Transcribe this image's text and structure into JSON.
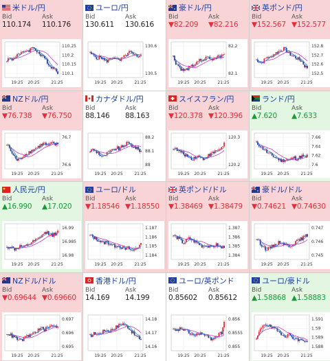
{
  "colors": {
    "down": "#e0303a",
    "up": "#1a9a3a",
    "bg_down": "#f9d4d6",
    "bg_up": "#e2f6e2",
    "title": "#1a3fa0",
    "ma": "#c020c0",
    "ma2": "#2f7fe0"
  },
  "labels": {
    "bid": "Bid",
    "ask": "Ask"
  },
  "x_ticks": [
    "19:25",
    "20:25",
    "21:25"
  ],
  "cards": [
    {
      "name": "米ドル/円",
      "flag": "us",
      "trend": "down",
      "bid": "110.174",
      "ask": "110.176",
      "arrow": "",
      "yticks": [
        "110.25",
        "110.2",
        "110.15",
        "110.1"
      ],
      "seed": 1,
      "shape": [
        0.5,
        0.55,
        0.5,
        0.6,
        0.7,
        0.65,
        0.75,
        0.8,
        0.78,
        0.85,
        0.9,
        0.8,
        0.7,
        0.6,
        0.55,
        0.45,
        0.3,
        0.25,
        0.2,
        0.1
      ]
    },
    {
      "name": "ユーロ/円",
      "flag": "eu",
      "trend": "flat",
      "bid": "130.611",
      "ask": "130.616",
      "arrow": "",
      "yticks": [
        "130.6",
        "130.5"
      ],
      "seed": 2,
      "shape": [
        0.7,
        0.65,
        0.6,
        0.55,
        0.6,
        0.5,
        0.45,
        0.5,
        0.55,
        0.6,
        0.5,
        0.45,
        0.55,
        0.6,
        0.7,
        0.75,
        0.65,
        0.6,
        0.55,
        0.7
      ]
    },
    {
      "name": "豪ドル/円",
      "flag": "au",
      "trend": "down",
      "bid": "82.209",
      "ask": "82.216",
      "arrow": "▼",
      "yticks": [
        "82.2",
        "82.1"
      ],
      "seed": 3,
      "shape": [
        0.6,
        0.4,
        0.3,
        0.2,
        0.15,
        0.2,
        0.25,
        0.3,
        0.35,
        0.4,
        0.5,
        0.45,
        0.55,
        0.6,
        0.5,
        0.55,
        0.6,
        0.65,
        0.6,
        0.7
      ]
    },
    {
      "name": "英ポンド/円",
      "flag": "uk",
      "trend": "down",
      "bid": "152.567",
      "ask": "152.577",
      "arrow": "▼",
      "yticks": [
        "152.8",
        "152.7",
        "152.6",
        "152.5"
      ],
      "seed": 4,
      "shape": [
        0.5,
        0.45,
        0.4,
        0.5,
        0.6,
        0.55,
        0.65,
        0.7,
        0.75,
        0.8,
        0.85,
        0.8,
        0.7,
        0.65,
        0.6,
        0.55,
        0.5,
        0.45,
        0.3,
        0.25
      ]
    },
    {
      "name": "NZドル/円",
      "flag": "nz",
      "trend": "down",
      "bid": "76.738",
      "ask": "76.750",
      "arrow": "▼",
      "yticks": [
        "76.7",
        "76.6"
      ],
      "seed": 5,
      "shape": [
        0.7,
        0.6,
        0.4,
        0.3,
        0.2,
        0.25,
        0.35,
        0.4,
        0.45,
        0.5,
        0.55,
        0.6,
        0.65,
        0.7,
        0.75,
        0.65,
        0.7,
        0.75,
        0.7,
        0.72
      ]
    },
    {
      "name": "カナダドル/円",
      "flag": "ca",
      "trend": "flat",
      "bid": "88.146",
      "ask": "88.163",
      "arrow": "",
      "yticks": [
        "88.2",
        "88.1",
        "88"
      ],
      "seed": 6,
      "shape": [
        0.5,
        0.55,
        0.5,
        0.45,
        0.35,
        0.3,
        0.4,
        0.45,
        0.5,
        0.55,
        0.6,
        0.55,
        0.65,
        0.7,
        0.75,
        0.7,
        0.65,
        0.6,
        0.55,
        0.5
      ]
    },
    {
      "name": "スイスフラン/円",
      "flag": "ch",
      "trend": "down",
      "bid": "120.378",
      "ask": "120.396",
      "arrow": "▼",
      "yticks": [
        "120.3",
        "120.2"
      ],
      "seed": 7,
      "shape": [
        0.6,
        0.55,
        0.5,
        0.45,
        0.4,
        0.35,
        0.3,
        0.25,
        0.3,
        0.35,
        0.3,
        0.25,
        0.3,
        0.35,
        0.4,
        0.45,
        0.5,
        0.55,
        0.6,
        0.75
      ]
    },
    {
      "name": "ランド/円",
      "flag": "za",
      "trend": "up",
      "bid": "7.620",
      "ask": "7.633",
      "arrow": "▲",
      "yticks": [
        "7.66",
        "7.64",
        "7.62",
        "7.6"
      ],
      "seed": 8,
      "shape": [
        0.75,
        0.7,
        0.6,
        0.55,
        0.45,
        0.4,
        0.35,
        0.3,
        0.25,
        0.2,
        0.2,
        0.25,
        0.2,
        0.25,
        0.3,
        0.25,
        0.3,
        0.35,
        0.3,
        0.35
      ]
    },
    {
      "name": "人民元/円",
      "flag": "cn",
      "trend": "up",
      "bid": "16.990",
      "ask": "17.020",
      "arrow": "▲",
      "yticks": [
        "16.99",
        "16.985",
        "16.98"
      ],
      "seed": 9,
      "shape": [
        0.3,
        0.35,
        0.3,
        0.25,
        0.3,
        0.35,
        0.3,
        0.35,
        0.4,
        0.45,
        0.5,
        0.55,
        0.6,
        0.7,
        0.75,
        0.8,
        0.75,
        0.7,
        0.75,
        0.8
      ]
    },
    {
      "name": "ユーロ/ドル",
      "flag": "eu",
      "trend": "down",
      "bid": "1.18546",
      "ask": "1.18550",
      "arrow": "▼",
      "yticks": [
        "1.187",
        "1.186",
        "1.185",
        "1.184"
      ],
      "seed": 10,
      "shape": [
        0.7,
        0.65,
        0.6,
        0.55,
        0.5,
        0.45,
        0.5,
        0.45,
        0.4,
        0.35,
        0.4,
        0.35,
        0.3,
        0.25,
        0.3,
        0.25,
        0.2,
        0.3,
        0.35,
        0.4
      ]
    },
    {
      "name": "英ポンド/ドル",
      "flag": "uk",
      "trend": "down",
      "bid": "1.38469",
      "ask": "1.38479",
      "arrow": "▼",
      "yticks": [
        "1.387",
        "1.386",
        "1.385",
        "1.384"
      ],
      "seed": 11,
      "shape": [
        0.7,
        0.65,
        0.6,
        0.5,
        0.45,
        0.55,
        0.6,
        0.55,
        0.5,
        0.45,
        0.4,
        0.35,
        0.4,
        0.35,
        0.3,
        0.35,
        0.4,
        0.35,
        0.3,
        0.35
      ]
    },
    {
      "name": "豪ドル/ドル",
      "flag": "au",
      "trend": "down",
      "bid": "0.74621",
      "ask": "0.74630",
      "arrow": "▼",
      "yticks": [
        "0.747",
        "0.746",
        "0.745"
      ],
      "seed": 12,
      "shape": [
        0.6,
        0.5,
        0.4,
        0.3,
        0.25,
        0.3,
        0.35,
        0.4,
        0.45,
        0.5,
        0.45,
        0.4,
        0.35,
        0.4,
        0.45,
        0.5,
        0.55,
        0.6,
        0.65,
        0.7
      ]
    },
    {
      "name": "NZドル/ドル",
      "flag": "nz",
      "trend": "down",
      "bid": "0.69644",
      "ask": "0.69660",
      "arrow": "▼",
      "yticks": [
        "0.697",
        "0.696",
        "0.695"
      ],
      "seed": 13,
      "shape": [
        0.5,
        0.45,
        0.4,
        0.35,
        0.3,
        0.25,
        0.3,
        0.35,
        0.4,
        0.45,
        0.5,
        0.55,
        0.6,
        0.65,
        0.6,
        0.65,
        0.7,
        0.75,
        0.7,
        0.72
      ]
    },
    {
      "name": "香港ドル/円",
      "flag": "hk",
      "trend": "flat",
      "bid": "14.169",
      "ask": "14.199",
      "arrow": "",
      "yticks": [
        "14.18",
        "14.17",
        "14.16"
      ],
      "seed": 14,
      "shape": [
        0.4,
        0.45,
        0.5,
        0.45,
        0.5,
        0.55,
        0.6,
        0.55,
        0.6,
        0.65,
        0.7,
        0.75,
        0.8,
        0.75,
        0.7,
        0.6,
        0.5,
        0.4,
        0.35,
        0.3
      ]
    },
    {
      "name": "ユーロ/英ポンド",
      "flag": "eu",
      "trend": "flat",
      "bid": "0.85602",
      "ask": "0.85612",
      "arrow": "",
      "yticks": [
        "0.856",
        "0.8555",
        "0.855"
      ],
      "seed": 15,
      "shape": [
        0.6,
        0.55,
        0.6,
        0.65,
        0.6,
        0.55,
        0.5,
        0.45,
        0.4,
        0.45,
        0.5,
        0.45,
        0.4,
        0.35,
        0.3,
        0.35,
        0.4,
        0.45,
        0.5,
        0.85
      ]
    },
    {
      "name": "ユーロ/豪ドル",
      "flag": "eu",
      "trend": "up",
      "bid": "1.58868",
      "ask": "1.58883",
      "arrow": "▲",
      "yticks": [
        "1.591",
        "1.59",
        "1.589",
        "1.588"
      ],
      "seed": 16,
      "shape": [
        0.3,
        0.5,
        0.7,
        0.8,
        0.75,
        0.7,
        0.65,
        0.6,
        0.55,
        0.5,
        0.45,
        0.4,
        0.45,
        0.4,
        0.35,
        0.3,
        0.25,
        0.3,
        0.25,
        0.2
      ]
    }
  ]
}
